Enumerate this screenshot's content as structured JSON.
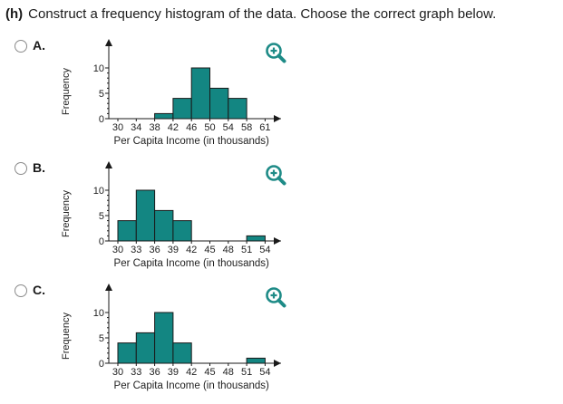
{
  "question": {
    "label": "(h)",
    "text": "Construct a frequency histogram of the data. Choose the correct graph below."
  },
  "colors": {
    "bar_fill": "#138682",
    "bar_stroke": "#1a1a1a",
    "axis": "#1a1a1a",
    "zoom_icon": "#1e8b87"
  },
  "options": [
    {
      "letter": "A.",
      "zoom_icon": "zoom-in-icon"
    },
    {
      "letter": "B.",
      "zoom_icon": "zoom-in-icon"
    },
    {
      "letter": "C.",
      "zoom_icon": "zoom-in-icon"
    }
  ],
  "chart_data": [
    {
      "type": "bar",
      "xlabel": "Per Capita Income (in thousands)",
      "ylabel": "Frequency",
      "ylim": [
        0,
        10
      ],
      "yticks": [
        "0",
        "5",
        "10"
      ],
      "xticks": [
        "30",
        "34",
        "38",
        "42",
        "46",
        "50",
        "54",
        "58",
        "61"
      ],
      "bins": [
        [
          30,
          34
        ],
        [
          34,
          38
        ],
        [
          38,
          42
        ],
        [
          42,
          46
        ],
        [
          46,
          50
        ],
        [
          50,
          54
        ],
        [
          54,
          58
        ],
        [
          58,
          61
        ]
      ],
      "values": [
        0,
        0,
        1,
        4,
        10,
        6,
        4,
        0
      ]
    },
    {
      "type": "bar",
      "xlabel": "Per Capita Income (in thousands)",
      "ylabel": "Frequency",
      "ylim": [
        0,
        10
      ],
      "yticks": [
        "0",
        "5",
        "10"
      ],
      "xticks": [
        "30",
        "33",
        "36",
        "39",
        "42",
        "45",
        "48",
        "51",
        "54"
      ],
      "bins": [
        [
          30,
          33
        ],
        [
          33,
          36
        ],
        [
          36,
          39
        ],
        [
          39,
          42
        ],
        [
          42,
          45
        ],
        [
          45,
          48
        ],
        [
          48,
          51
        ],
        [
          51,
          54
        ]
      ],
      "values": [
        4,
        10,
        6,
        4,
        0,
        0,
        0,
        1
      ]
    },
    {
      "type": "bar",
      "xlabel": "Per Capita Income (in thousands)",
      "ylabel": "Frequency",
      "ylim": [
        0,
        10
      ],
      "yticks": [
        "0",
        "5",
        "10"
      ],
      "xticks": [
        "30",
        "33",
        "36",
        "39",
        "42",
        "45",
        "48",
        "51",
        "54"
      ],
      "bins": [
        [
          30,
          33
        ],
        [
          33,
          36
        ],
        [
          36,
          39
        ],
        [
          39,
          42
        ],
        [
          42,
          45
        ],
        [
          45,
          48
        ],
        [
          48,
          51
        ],
        [
          51,
          54
        ]
      ],
      "values": [
        4,
        6,
        10,
        4,
        0,
        0,
        0,
        1
      ]
    }
  ]
}
